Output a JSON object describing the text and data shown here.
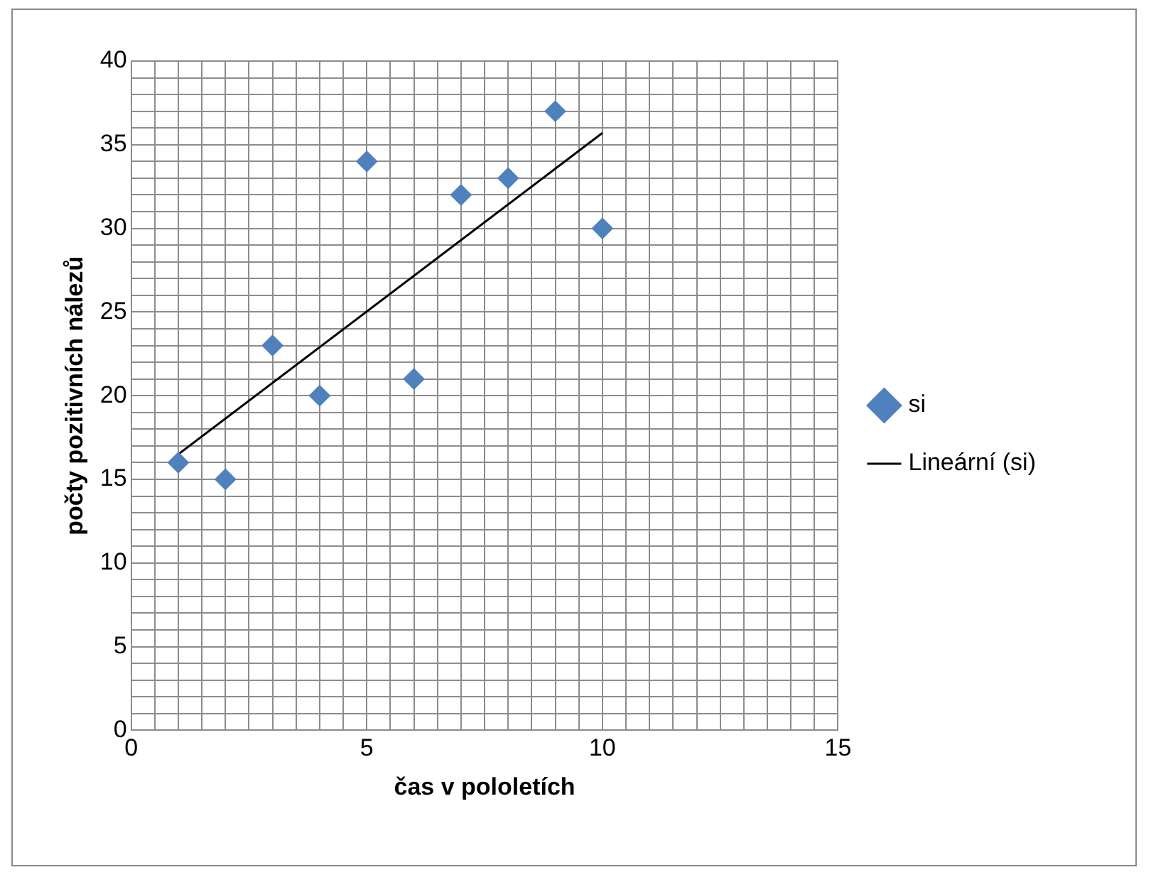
{
  "chart_data": {
    "type": "scatter",
    "xlabel": "čas v pololetích",
    "ylabel": "počty pozitivních nálezů",
    "series": [
      {
        "name": "si",
        "type": "scatter",
        "color": "#4f81bd",
        "marker": "diamond",
        "x": [
          1,
          2,
          3,
          4,
          5,
          6,
          7,
          8,
          9,
          10
        ],
        "values": [
          16,
          15,
          23,
          20,
          34,
          21,
          32,
          33,
          37,
          30
        ]
      },
      {
        "name": "Lineární (si)",
        "type": "line",
        "color": "#000000",
        "marker": "none",
        "x": [
          1,
          10
        ],
        "values": [
          16.5,
          35.7
        ]
      }
    ],
    "xlim": [
      0,
      15
    ],
    "xticks": [
      0,
      {
        "value": 0.5,
        "label": null
      },
      {
        "value": 1,
        "label": null
      },
      {
        "value": 1.5,
        "label": null
      },
      {
        "value": 2,
        "label": null
      },
      {
        "value": 2.5,
        "label": null
      },
      {
        "value": 3,
        "label": null
      },
      {
        "value": 3.5,
        "label": null
      },
      {
        "value": 4,
        "label": null
      },
      {
        "value": 4.5,
        "label": null
      },
      5,
      {
        "value": 5.5,
        "label": null
      },
      {
        "value": 6,
        "label": null
      },
      {
        "value": 6.5,
        "label": null
      },
      {
        "value": 7,
        "label": null
      },
      {
        "value": 7.5,
        "label": null
      },
      {
        "value": 8,
        "label": null
      },
      {
        "value": 8.5,
        "label": null
      },
      {
        "value": 9,
        "label": null
      },
      {
        "value": 9.5,
        "label": null
      },
      10,
      {
        "value": 10.5,
        "label": null
      },
      {
        "value": 11,
        "label": null
      },
      {
        "value": 11.5,
        "label": null
      },
      {
        "value": 12,
        "label": null
      },
      {
        "value": 12.5,
        "label": null
      },
      {
        "value": 13,
        "label": null
      },
      {
        "value": 13.5,
        "label": null
      },
      {
        "value": 14,
        "label": null
      },
      {
        "value": 14.5,
        "label": null
      },
      15
    ],
    "ylim": [
      0,
      40
    ],
    "yticks": [
      0,
      {
        "value": 1,
        "label": null
      },
      {
        "value": 2,
        "label": null
      },
      {
        "value": 3,
        "label": null
      },
      {
        "value": 4,
        "label": null
      },
      5,
      {
        "value": 6,
        "label": null
      },
      {
        "value": 7,
        "label": null
      },
      {
        "value": 8,
        "label": null
      },
      {
        "value": 9,
        "label": null
      },
      10,
      {
        "value": 11,
        "label": null
      },
      {
        "value": 12,
        "label": null
      },
      {
        "value": 13,
        "label": null
      },
      {
        "value": 14,
        "label": null
      },
      15,
      {
        "value": 16,
        "label": null
      },
      {
        "value": 17,
        "label": null
      },
      {
        "value": 18,
        "label": null
      },
      {
        "value": 19,
        "label": null
      },
      20,
      {
        "value": 21,
        "label": null
      },
      {
        "value": 22,
        "label": null
      },
      {
        "value": 23,
        "label": null
      },
      {
        "value": 24,
        "label": null
      },
      25,
      {
        "value": 26,
        "label": null
      },
      {
        "value": 27,
        "label": null
      },
      {
        "value": 28,
        "label": null
      },
      {
        "value": 29,
        "label": null
      },
      30,
      {
        "value": 31,
        "label": null
      },
      {
        "value": 32,
        "label": null
      },
      {
        "value": 33,
        "label": null
      },
      {
        "value": 34,
        "label": null
      },
      35,
      {
        "value": 36,
        "label": null
      },
      {
        "value": 37,
        "label": null
      },
      {
        "value": 38,
        "label": null
      },
      {
        "value": 39,
        "label": null
      },
      40
    ],
    "grid": true,
    "legend": "right"
  }
}
